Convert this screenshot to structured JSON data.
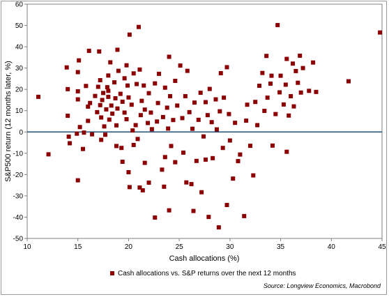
{
  "chart_data": {
    "type": "scatter",
    "title": "",
    "xlabel": "Cash allocations (%)",
    "ylabel": "S&P500 return (12 months later, %)",
    "xlim": [
      10,
      45
    ],
    "ylim": [
      -50,
      60
    ],
    "xticks": [
      10,
      15,
      20,
      25,
      30,
      35,
      40,
      45
    ],
    "yticks": [
      -50,
      -40,
      -30,
      -20,
      -10,
      0,
      10,
      20,
      30,
      40,
      50,
      60
    ],
    "grid": false,
    "reference_line": {
      "y": 0,
      "color": "#1f4e79"
    },
    "legend": {
      "position": "bottom-center"
    },
    "source": "Source: Longview Economics, Macrobond",
    "series": [
      {
        "name": "Cash allocations vs. S&P returns over the next 12 months",
        "color": "#8b0000",
        "points": [
          [
            11.1,
            16.5
          ],
          [
            12.1,
            -10.5
          ],
          [
            13.9,
            30.3
          ],
          [
            14.0,
            20.1
          ],
          [
            14.0,
            7.6
          ],
          [
            14.1,
            -2.2
          ],
          [
            14.2,
            -5.3
          ],
          [
            14.9,
            -0.8
          ],
          [
            15.0,
            28.1
          ],
          [
            15.0,
            19.1
          ],
          [
            15.0,
            15.3
          ],
          [
            15.0,
            -22.7
          ],
          [
            15.1,
            33.6
          ],
          [
            15.2,
            2.3
          ],
          [
            15.5,
            -8.0
          ],
          [
            15.6,
            -0.3
          ],
          [
            15.8,
            21.6
          ],
          [
            16.0,
            11.9
          ],
          [
            16.0,
            5.2
          ],
          [
            16.1,
            38.1
          ],
          [
            16.2,
            13.6
          ],
          [
            16.4,
            -1.1
          ],
          [
            16.7,
            16.9
          ],
          [
            16.9,
            9.3
          ],
          [
            17.0,
            21.2
          ],
          [
            17.1,
            37.8
          ],
          [
            17.2,
            24.3
          ],
          [
            17.2,
            12.6
          ],
          [
            17.3,
            6.8
          ],
          [
            17.3,
            -3.7
          ],
          [
            17.4,
            15.0
          ],
          [
            17.5,
            18.3
          ],
          [
            17.6,
            2.6
          ],
          [
            17.7,
            -1.3
          ],
          [
            17.8,
            10.6
          ],
          [
            17.9,
            21.0
          ],
          [
            18.0,
            26.5
          ],
          [
            18.0,
            19.3
          ],
          [
            18.0,
            16.5
          ],
          [
            18.1,
            5.8
          ],
          [
            18.2,
            32.7
          ],
          [
            18.3,
            12.4
          ],
          [
            18.4,
            8.6
          ],
          [
            18.6,
            23.3
          ],
          [
            18.7,
            15.8
          ],
          [
            18.8,
            3.1
          ],
          [
            18.8,
            -6.6
          ],
          [
            18.9,
            38.6
          ],
          [
            18.9,
            11.0
          ],
          [
            19.0,
            28.7
          ],
          [
            19.2,
            17.9
          ],
          [
            19.3,
            -7.5
          ],
          [
            19.4,
            14.2
          ],
          [
            19.4,
            -14.0
          ],
          [
            19.6,
            25.2
          ],
          [
            19.6,
            9.1
          ],
          [
            19.8,
            31.3
          ],
          [
            19.8,
            6.0
          ],
          [
            19.9,
            21.8
          ],
          [
            20.0,
            16.2
          ],
          [
            20.0,
            -18.9
          ],
          [
            20.1,
            45.7
          ],
          [
            20.1,
            -25.9
          ],
          [
            20.3,
            12.8
          ],
          [
            20.4,
            0.7
          ],
          [
            20.5,
            27.5
          ],
          [
            20.5,
            -6.1
          ],
          [
            20.7,
            3.2
          ],
          [
            20.8,
            22.5
          ],
          [
            20.9,
            -3.3
          ],
          [
            21.0,
            49.3
          ],
          [
            21.1,
            29.3
          ],
          [
            21.1,
            -26.1
          ],
          [
            21.2,
            7.9
          ],
          [
            21.3,
            14.6
          ],
          [
            21.4,
            -27.4
          ],
          [
            21.5,
            21.8
          ],
          [
            21.6,
            10.5
          ],
          [
            21.6,
            -14.5
          ],
          [
            21.9,
            4.2
          ],
          [
            22.0,
            18.2
          ],
          [
            22.0,
            -23.8
          ],
          [
            22.2,
            9.1
          ],
          [
            22.3,
            1.3
          ],
          [
            22.6,
            22.8
          ],
          [
            22.6,
            -40.2
          ],
          [
            22.8,
            4.9
          ],
          [
            22.9,
            13.6
          ],
          [
            23.0,
            27.3
          ],
          [
            23.3,
            -17.7
          ],
          [
            23.4,
            7.0
          ],
          [
            23.5,
            -25.7
          ],
          [
            23.6,
            20.8
          ],
          [
            23.6,
            -11.8
          ],
          [
            23.8,
            11.4
          ],
          [
            23.9,
            1.6
          ],
          [
            24.0,
            35.3
          ],
          [
            24.0,
            -36.8
          ],
          [
            24.1,
            16.8
          ],
          [
            24.2,
            -6.6
          ],
          [
            24.4,
            5.6
          ],
          [
            24.6,
            24.0
          ],
          [
            24.6,
            -14.2
          ],
          [
            24.8,
            12.4
          ],
          [
            25.1,
            31.2
          ],
          [
            25.3,
            6.5
          ],
          [
            25.4,
            -9.7
          ],
          [
            25.6,
            16.8
          ],
          [
            25.7,
            -23.7
          ],
          [
            25.8,
            28.7
          ],
          [
            26.0,
            9.3
          ],
          [
            26.2,
            -24.5
          ],
          [
            26.3,
            1.5
          ],
          [
            26.4,
            -37.1
          ],
          [
            26.5,
            13.8
          ],
          [
            26.7,
            -13.6
          ],
          [
            26.9,
            5.7
          ],
          [
            27.1,
            18.4
          ],
          [
            27.2,
            -28.3
          ],
          [
            27.4,
            -2.1
          ],
          [
            27.6,
            14.0
          ],
          [
            27.6,
            -13.0
          ],
          [
            27.8,
            7.9
          ],
          [
            27.9,
            -39.9
          ],
          [
            28.0,
            20.2
          ],
          [
            28.2,
            4.6
          ],
          [
            28.3,
            -12.3
          ],
          [
            28.6,
            15.3
          ],
          [
            28.7,
            1.2
          ],
          [
            28.9,
            -44.8
          ],
          [
            29.0,
            9.7
          ],
          [
            29.1,
            27.6
          ],
          [
            29.3,
            -7.5
          ],
          [
            29.4,
            16.1
          ],
          [
            29.7,
            30.4
          ],
          [
            29.7,
            -34.3
          ],
          [
            29.9,
            8.4
          ],
          [
            30.0,
            -4.0
          ],
          [
            30.3,
            -21.9
          ],
          [
            30.5,
            4.3
          ],
          [
            30.8,
            -13.7
          ],
          [
            31.0,
            -10.6
          ],
          [
            31.4,
            -39.5
          ],
          [
            31.6,
            5.3
          ],
          [
            31.7,
            12.8
          ],
          [
            32.0,
            -6.5
          ],
          [
            32.3,
            -20.4
          ],
          [
            32.5,
            14.1
          ],
          [
            32.7,
            3.2
          ],
          [
            32.9,
            21.7
          ],
          [
            33.2,
            27.7
          ],
          [
            33.4,
            9.9
          ],
          [
            33.6,
            35.7
          ],
          [
            33.7,
            16.1
          ],
          [
            34.0,
            22.7
          ],
          [
            34.1,
            26.4
          ],
          [
            34.2,
            -6.4
          ],
          [
            34.5,
            8.4
          ],
          [
            34.7,
            50.2
          ],
          [
            34.9,
            18.6
          ],
          [
            35.0,
            26.4
          ],
          [
            35.3,
            12.9
          ],
          [
            35.5,
            22.2
          ],
          [
            35.6,
            34.3
          ],
          [
            35.6,
            -9.3
          ],
          [
            35.8,
            7.7
          ],
          [
            36.0,
            16.8
          ],
          [
            36.2,
            32.1
          ],
          [
            36.3,
            12.0
          ],
          [
            36.5,
            28.6
          ],
          [
            36.7,
            23.1
          ],
          [
            36.9,
            35.8
          ],
          [
            37.0,
            18.5
          ],
          [
            37.2,
            30.0
          ],
          [
            37.8,
            19.3
          ],
          [
            38.2,
            32.6
          ],
          [
            38.5,
            18.8
          ],
          [
            41.7,
            23.8
          ],
          [
            44.8,
            46.7
          ]
        ]
      }
    ]
  }
}
